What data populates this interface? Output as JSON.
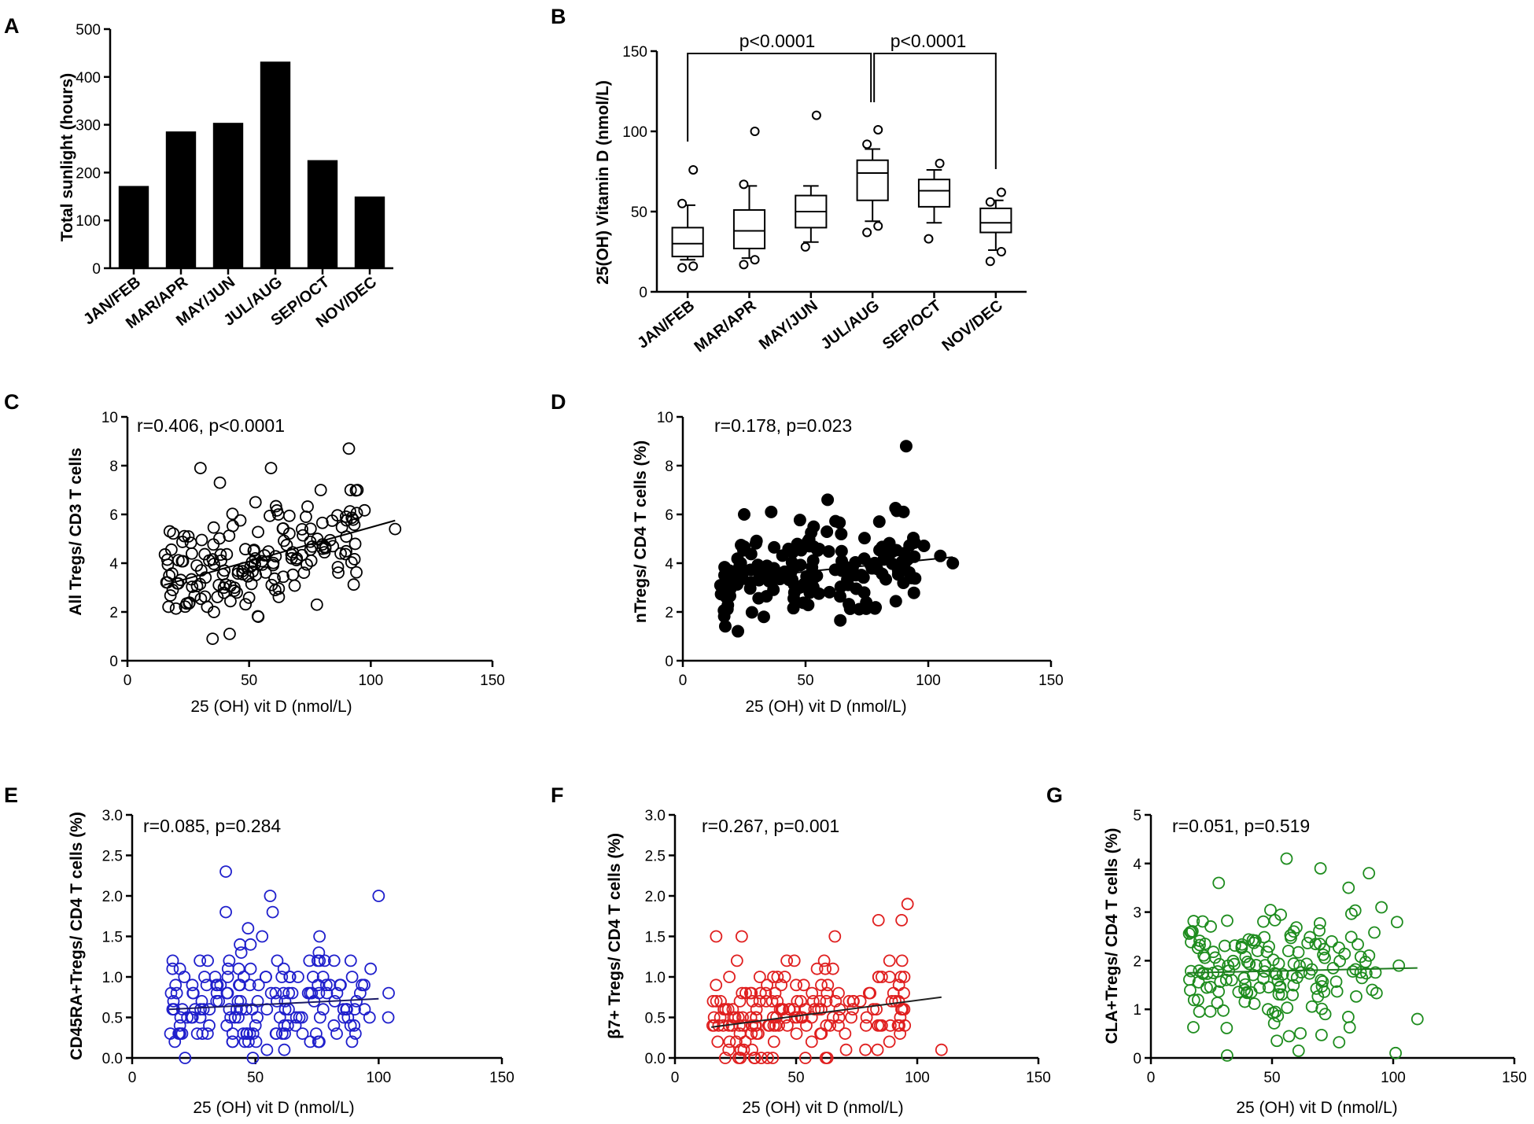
{
  "colors": {
    "black": "#000000",
    "blue": "#1f1fcc",
    "red": "#e01f1f",
    "green": "#1e8c1e",
    "line_blue": "#1a1a66",
    "line_red": "#222222",
    "line_green": "#1e7a1e"
  },
  "chart_data": [
    {
      "panel": "A",
      "type": "bar",
      "title": "",
      "categories": [
        "JAN/FEB",
        "MAR/APR",
        "MAY/JUN",
        "JUL/AUG",
        "SEP/OCT",
        "NOV/DEC"
      ],
      "values": [
        172,
        286,
        304,
        432,
        226,
        150
      ],
      "xlabel": "",
      "ylabel": "Total sunlight (hours)",
      "ylim": [
        0,
        500
      ],
      "yticks": [
        "0",
        "100",
        "200",
        "300",
        "400",
        "500"
      ]
    },
    {
      "panel": "B",
      "type": "box",
      "categories": [
        "JAN/FEB",
        "MAR/APR",
        "MAY/JUN",
        "JUL/AUG",
        "SEP/OCT",
        "NOV/DEC"
      ],
      "boxes": [
        {
          "whisker_low": 20,
          "q1": 22,
          "median": 30,
          "q3": 40,
          "whisker_high": 54,
          "outliers": [
            15,
            16,
            55,
            76
          ]
        },
        {
          "whisker_low": 21,
          "q1": 27,
          "median": 38,
          "q3": 51,
          "whisker_high": 66,
          "outliers": [
            17,
            20,
            67,
            100
          ]
        },
        {
          "whisker_low": 31,
          "q1": 40,
          "median": 50,
          "q3": 60,
          "whisker_high": 66,
          "outliers": [
            28,
            110
          ]
        },
        {
          "whisker_low": 44,
          "q1": 57,
          "median": 74,
          "q3": 82,
          "whisker_high": 89,
          "outliers": [
            37,
            41,
            92,
            101
          ]
        },
        {
          "whisker_low": 43,
          "q1": 53,
          "median": 63,
          "q3": 70,
          "whisker_high": 76,
          "outliers": [
            33,
            80
          ]
        },
        {
          "whisker_low": 26,
          "q1": 37,
          "median": 43,
          "q3": 52,
          "whisker_high": 57,
          "outliers": [
            19,
            25,
            56,
            62
          ]
        }
      ],
      "ylabel": "25(OH) Vitamin D (nmol/L)",
      "ylim": [
        0,
        150
      ],
      "yticks": [
        "0",
        "50",
        "100",
        "150"
      ],
      "annotations": [
        "p<0.0001",
        "p<0.0001"
      ]
    },
    {
      "panel": "C",
      "type": "scatter",
      "marker": "open",
      "color": "#000000",
      "seed": 11,
      "n": 170,
      "xlabel": "25 (OH) vit D (nmol/L)",
      "ylabel": "All Tregs/ CD3 T cells",
      "xlim": [
        0,
        150
      ],
      "ylim": [
        0,
        10
      ],
      "xticks": [
        "0",
        "50",
        "100",
        "150"
      ],
      "yticks": [
        "0",
        "2",
        "4",
        "6",
        "8",
        "10"
      ],
      "annotation": "r=0.406, p<0.0001",
      "fit_line": {
        "x": [
          15,
          110
        ],
        "y": [
          3.1,
          5.75
        ]
      },
      "points_notable": [
        {
          "x": 30,
          "y": 7.9
        },
        {
          "x": 38,
          "y": 7.3
        },
        {
          "x": 59,
          "y": 7.9
        },
        {
          "x": 91,
          "y": 8.7
        },
        {
          "x": 110,
          "y": 5.4
        },
        {
          "x": 35,
          "y": 0.9
        },
        {
          "x": 42,
          "y": 1.1
        }
      ]
    },
    {
      "panel": "D",
      "type": "scatter",
      "marker": "filled",
      "color": "#000000",
      "seed": 23,
      "n": 170,
      "xlabel": "25 (OH) vit D (nmol/L)",
      "ylabel": "nTregs/ CD4 T cells (%)",
      "xlim": [
        0,
        150
      ],
      "ylim": [
        0,
        10
      ],
      "xticks": [
        "0",
        "50",
        "100",
        "150"
      ],
      "yticks": [
        "0",
        "2",
        "4",
        "6",
        "8",
        "10"
      ],
      "annotation": "r=0.178, p=0.023",
      "fit_line": {
        "x": [
          15,
          110
        ],
        "y": [
          3.3,
          4.25
        ]
      },
      "points_notable": [
        {
          "x": 91,
          "y": 8.8
        },
        {
          "x": 25,
          "y": 6.0
        },
        {
          "x": 36,
          "y": 6.1
        },
        {
          "x": 59,
          "y": 6.6
        },
        {
          "x": 110,
          "y": 4.0
        },
        {
          "x": 33,
          "y": 1.8
        }
      ]
    },
    {
      "panel": "E",
      "type": "scatter",
      "marker": "open",
      "color": "#1f1fcc",
      "seed": 37,
      "n": 175,
      "xlabel": "25 (OH) vit D (nmol/L)",
      "ylabel": "CD45RA+Tregs/ CD4 T cells (%)",
      "xlim": [
        0,
        150
      ],
      "ylim": [
        0,
        3
      ],
      "xticks": [
        "0",
        "50",
        "100",
        "150"
      ],
      "yticks": [
        "0.0",
        "0.5",
        "1.0",
        "1.5",
        "2.0",
        "2.5",
        "3.0"
      ],
      "annotation": "r=0.085, p=0.284",
      "fit_line": {
        "x": [
          15,
          100
        ],
        "y": [
          0.6,
          0.73
        ]
      },
      "points_notable": [
        {
          "x": 38,
          "y": 2.3
        },
        {
          "x": 56,
          "y": 2.0
        },
        {
          "x": 100,
          "y": 2.0
        },
        {
          "x": 38,
          "y": 1.8
        },
        {
          "x": 57,
          "y": 1.8
        },
        {
          "x": 76,
          "y": 1.5
        }
      ]
    },
    {
      "panel": "F",
      "type": "scatter",
      "marker": "open",
      "color": "#e01f1f",
      "seed": 41,
      "n": 175,
      "xlabel": "25 (OH) vit D (nmol/L)",
      "ylabel": "β7+ Tregs/ CD4 T cells (%)",
      "xlim": [
        0,
        150
      ],
      "ylim": [
        0,
        3
      ],
      "xticks": [
        "0",
        "50",
        "100",
        "150"
      ],
      "yticks": [
        "0.0",
        "0.5",
        "1.0",
        "1.5",
        "2.0",
        "2.5",
        "3.0"
      ],
      "annotation": "r=0.267, p=0.001",
      "fit_line": {
        "x": [
          15,
          110
        ],
        "y": [
          0.38,
          0.75
        ]
      },
      "points_notable": [
        {
          "x": 17,
          "y": 1.5
        },
        {
          "x": 96,
          "y": 1.9
        },
        {
          "x": 84,
          "y": 1.7
        },
        {
          "x": 66,
          "y": 1.5
        },
        {
          "x": 110,
          "y": 0.1
        },
        {
          "x": 33,
          "y": 0.0
        }
      ]
    },
    {
      "panel": "G",
      "type": "scatter",
      "marker": "open",
      "color": "#1e8c1e",
      "seed": 53,
      "n": 170,
      "xlabel": "25 (OH) vit D (nmol/L)",
      "ylabel": "CLA+Tregs/ CD4 T cells (%)",
      "xlim": [
        0,
        150
      ],
      "ylim": [
        0,
        5
      ],
      "xticks": [
        "0",
        "50",
        "100",
        "150"
      ],
      "yticks": [
        "0",
        "1",
        "2",
        "3",
        "4",
        "5"
      ],
      "annotation": "r=0.051, p=0.519",
      "fit_line": {
        "x": [
          15,
          110
        ],
        "y": [
          1.75,
          1.85
        ]
      },
      "points_notable": [
        {
          "x": 56,
          "y": 4.1
        },
        {
          "x": 70,
          "y": 3.9
        },
        {
          "x": 90,
          "y": 3.8
        },
        {
          "x": 28,
          "y": 3.6
        },
        {
          "x": 101,
          "y": 0.1
        },
        {
          "x": 110,
          "y": 0.8
        }
      ]
    }
  ]
}
